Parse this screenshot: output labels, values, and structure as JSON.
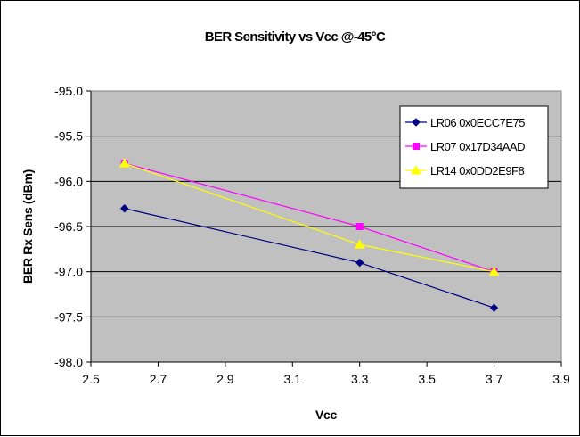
{
  "chart_data": {
    "type": "line",
    "title": "BER Sensitivity vs Vcc @-45°C",
    "xlabel": "Vcc",
    "ylabel": "BER Rx Sens (dBm)",
    "xlim": [
      2.5,
      3.9
    ],
    "ylim": [
      -98.0,
      -95.0
    ],
    "x_ticks": [
      "2.5",
      "2.7",
      "2.9",
      "3.1",
      "3.3",
      "3.5",
      "3.7",
      "3.9"
    ],
    "y_ticks": [
      "-95.0",
      "-95.5",
      "-96.0",
      "-96.5",
      "-97.0",
      "-97.5",
      "-98.0"
    ],
    "grid": "horizontal",
    "plot_background": "#c0c0c0",
    "legend_position": "top-right",
    "series": [
      {
        "name": "LR06 0x0ECC7E75",
        "color": "#000080",
        "marker": "diamond",
        "x": [
          2.6,
          3.3,
          3.7
        ],
        "y": [
          -96.3,
          -96.9,
          -97.4
        ]
      },
      {
        "name": "LR07 0x17D34AAD",
        "color": "#ff00ff",
        "marker": "square",
        "x": [
          2.6,
          3.3,
          3.7
        ],
        "y": [
          -95.8,
          -96.5,
          -97.0
        ]
      },
      {
        "name": "LR14 0x0DD2E9F8",
        "color": "#ffff00",
        "marker": "triangle",
        "x": [
          2.6,
          3.3,
          3.7
        ],
        "y": [
          -95.8,
          -96.7,
          -97.0
        ]
      }
    ]
  }
}
